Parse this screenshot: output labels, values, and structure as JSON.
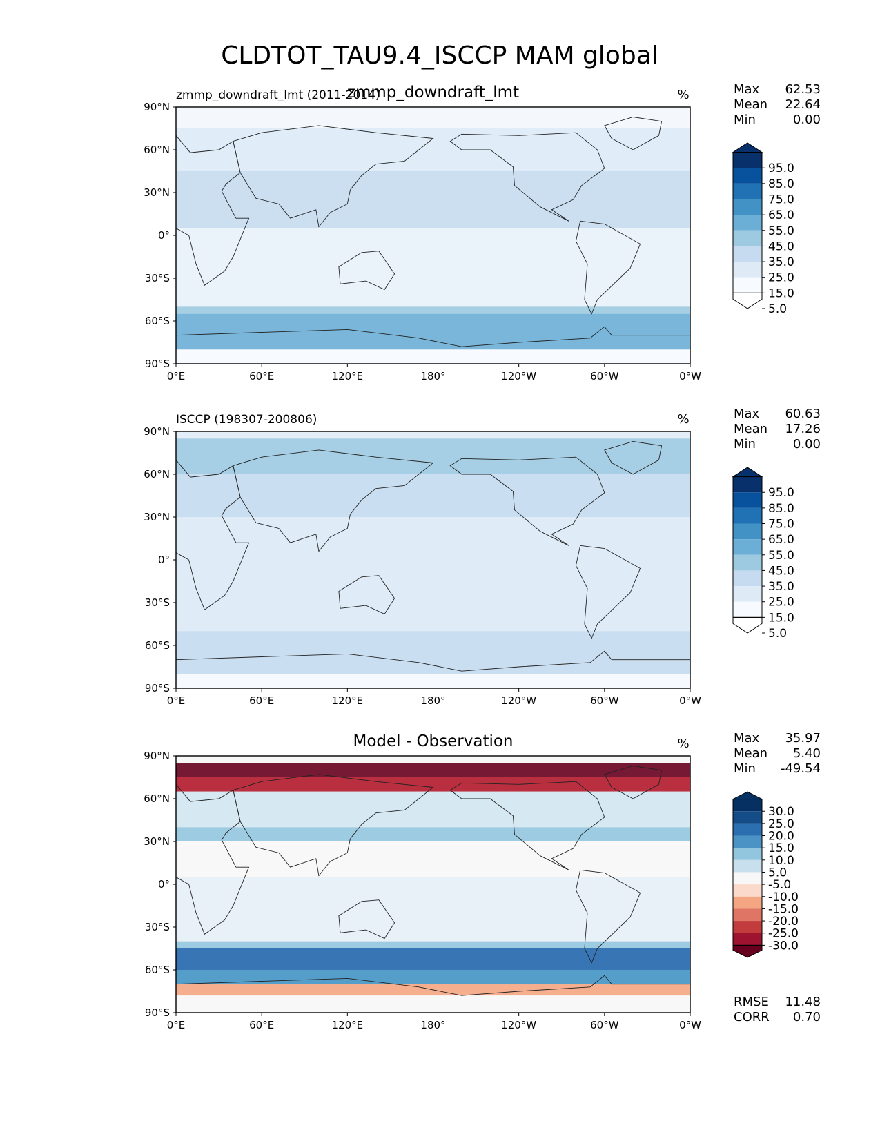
{
  "figure": {
    "title": "CLDTOT_TAU9.4_ISCCP MAM global"
  },
  "panels": [
    {
      "id": "model",
      "center_title": "zmmp_downdraft_lmt",
      "left_title": "zmmp_downdraft_lmt (2011-2014)",
      "units": "%",
      "stats": [
        {
          "label": "Max",
          "value": "62.53"
        },
        {
          "label": "Mean",
          "value": "22.64"
        },
        {
          "label": "Min",
          "value": "0.00"
        }
      ],
      "colorbar": {
        "ticks": [
          "95.0",
          "85.0",
          "75.0",
          "65.0",
          "55.0",
          "45.0",
          "35.0",
          "25.0",
          "15.0",
          "5.0"
        ],
        "colors": [
          "#08306b",
          "#08519c",
          "#2171b5",
          "#4292c6",
          "#6baed6",
          "#9ecae1",
          "#c6dbef",
          "#deebf7",
          "#f7fbff",
          "#ffffff"
        ]
      },
      "field": {
        "base": "#f4f8fc",
        "bands": [
          {
            "lat": 75,
            "color": "#deebf7"
          },
          {
            "lat": 45,
            "color": "#c6dbef"
          },
          {
            "lat": 5,
            "color": "#eaf2fa"
          },
          {
            "lat": -50,
            "color": "#9ecae1"
          },
          {
            "lat": -55,
            "color": "#6baed6"
          },
          {
            "lat": -80,
            "color": "#f7fbff"
          }
        ]
      }
    },
    {
      "id": "obs",
      "center_title": "",
      "left_title": "ISCCP (198307-200806)",
      "units": "%",
      "stats": [
        {
          "label": "Max",
          "value": "60.63"
        },
        {
          "label": "Mean",
          "value": "17.26"
        },
        {
          "label": "Min",
          "value": "0.00"
        }
      ],
      "colorbar": {
        "ticks": [
          "95.0",
          "85.0",
          "75.0",
          "65.0",
          "55.0",
          "45.0",
          "35.0",
          "25.0",
          "15.0",
          "5.0"
        ],
        "colors": [
          "#08306b",
          "#08519c",
          "#2171b5",
          "#4292c6",
          "#6baed6",
          "#9ecae1",
          "#c6dbef",
          "#deebf7",
          "#f7fbff",
          "#ffffff"
        ]
      },
      "field": {
        "base": "#e4eef8",
        "bands": [
          {
            "lat": 85,
            "color": "#9ecae1"
          },
          {
            "lat": 60,
            "color": "#c6dbef"
          },
          {
            "lat": 30,
            "color": "#deebf7"
          },
          {
            "lat": -50,
            "color": "#c6dbef"
          },
          {
            "lat": -80,
            "color": "#f7fbff"
          }
        ]
      }
    },
    {
      "id": "diff",
      "center_title": "Model - Observation",
      "left_title": "",
      "units": "%",
      "stats": [
        {
          "label": "Max",
          "value": "35.97"
        },
        {
          "label": "Mean",
          "value": "5.40"
        },
        {
          "label": "Min",
          "value": "-49.54"
        }
      ],
      "colorbar": {
        "ticks": [
          "30.0",
          "25.0",
          "20.0",
          "15.0",
          "10.0",
          "5.0",
          "-5.0",
          "-10.0",
          "-15.0",
          "-20.0",
          "-25.0",
          "-30.0"
        ],
        "colors": [
          "#053061",
          "#134c87",
          "#2b6fb0",
          "#4a93c4",
          "#92c5de",
          "#c8e0ee",
          "#f7f7f7",
          "#fbdacb",
          "#f4a582",
          "#de7565",
          "#c23c3d",
          "#9e1430",
          "#67001f"
        ]
      },
      "field": {
        "base": "#f7f7f7",
        "bands": [
          {
            "lat": 85,
            "color": "#67001f"
          },
          {
            "lat": 75,
            "color": "#b2182b"
          },
          {
            "lat": 65,
            "color": "#d1e5f0"
          },
          {
            "lat": 40,
            "color": "#92c5de"
          },
          {
            "lat": 30,
            "color": "#f7f7f7"
          },
          {
            "lat": 5,
            "color": "#e6f0f7"
          },
          {
            "lat": -40,
            "color": "#92c5de"
          },
          {
            "lat": -45,
            "color": "#2166ac"
          },
          {
            "lat": -60,
            "color": "#4393c3"
          },
          {
            "lat": -70,
            "color": "#f4a582"
          },
          {
            "lat": -78,
            "color": "#f7f7f7"
          }
        ]
      },
      "footer_stats": [
        {
          "label": "RMSE",
          "value": "11.48"
        },
        {
          "label": "CORR",
          "value": "0.70"
        }
      ]
    }
  ],
  "axes": {
    "lat_ticks": [
      "90°N",
      "60°N",
      "30°N",
      "0°",
      "30°S",
      "60°S",
      "90°S"
    ],
    "lon_ticks": [
      "0°E",
      "60°E",
      "120°E",
      "180°",
      "120°W",
      "60°W",
      "0°W"
    ]
  }
}
